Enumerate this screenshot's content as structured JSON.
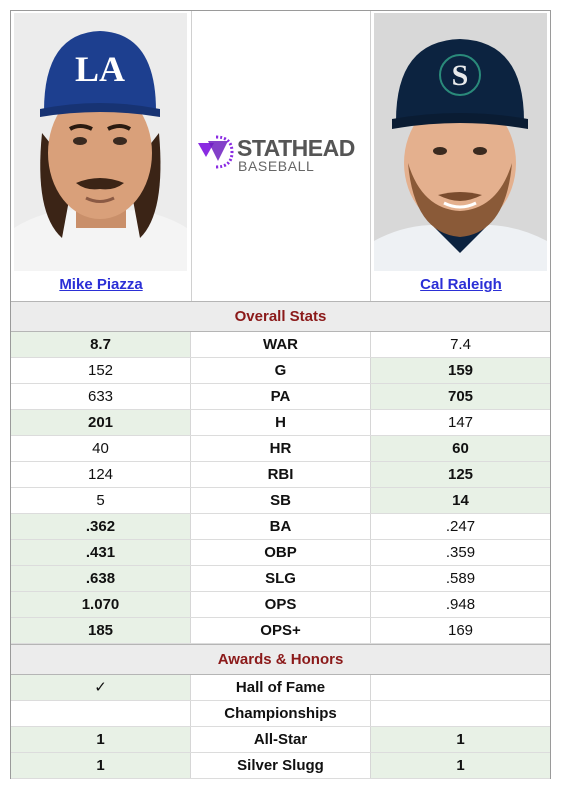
{
  "players": {
    "left": {
      "name": "Mike Piazza",
      "cap_letters": "LA"
    },
    "right": {
      "name": "Cal Raleigh",
      "cap_letters": "S"
    }
  },
  "logo": {
    "line1": "STATHEAD",
    "line2": "BASEBALL"
  },
  "sections": {
    "overall": "Overall Stats",
    "awards": "Awards & Honors"
  },
  "overall_stats": [
    {
      "stat": "WAR",
      "left": "8.7",
      "right": "7.4",
      "winner": "left"
    },
    {
      "stat": "G",
      "left": "152",
      "right": "159",
      "winner": "right"
    },
    {
      "stat": "PA",
      "left": "633",
      "right": "705",
      "winner": "right"
    },
    {
      "stat": "H",
      "left": "201",
      "right": "147",
      "winner": "left"
    },
    {
      "stat": "HR",
      "left": "40",
      "right": "60",
      "winner": "right"
    },
    {
      "stat": "RBI",
      "left": "124",
      "right": "125",
      "winner": "right"
    },
    {
      "stat": "SB",
      "left": "5",
      "right": "14",
      "winner": "right"
    },
    {
      "stat": "BA",
      "left": ".362",
      "right": ".247",
      "winner": "left"
    },
    {
      "stat": "OBP",
      "left": ".431",
      "right": ".359",
      "winner": "left"
    },
    {
      "stat": "SLG",
      "left": ".638",
      "right": ".589",
      "winner": "left"
    },
    {
      "stat": "OPS",
      "left": "1.070",
      "right": ".948",
      "winner": "left"
    },
    {
      "stat": "OPS+",
      "left": "185",
      "right": "169",
      "winner": "left"
    }
  ],
  "awards": [
    {
      "stat": "Hall of Fame",
      "left": "✓",
      "right": "",
      "winner": "left"
    },
    {
      "stat": "Championships",
      "left": "",
      "right": "",
      "winner": "none"
    },
    {
      "stat": "All-Star",
      "left": "1",
      "right": "1",
      "winner": "both"
    },
    {
      "stat": "Silver Slugg",
      "left": "1",
      "right": "1",
      "winner": "both"
    }
  ],
  "colors": {
    "highlight": "#e8f1e6",
    "section_title": "#8b1a1a",
    "link": "#2b2fd6",
    "logo_purple": "#8a2be2"
  }
}
